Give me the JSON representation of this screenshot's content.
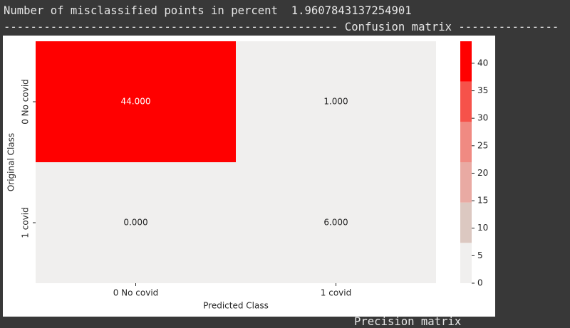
{
  "header": {
    "misclassified_label": "Number of misclassified points in percent",
    "misclassified_value": 1.9607843137254901,
    "section_line": "-------------------------------------------------- Confusion matrix ---------------"
  },
  "chart_data": {
    "type": "heatmap",
    "x_categories": [
      "0 No covid",
      "1 covid"
    ],
    "y_categories": [
      "0 No covid",
      "1 covid"
    ],
    "values": [
      [
        44,
        1
      ],
      [
        0,
        6
      ]
    ],
    "value_labels": [
      [
        "44.000",
        "1.000"
      ],
      [
        "0.000",
        "6.000"
      ]
    ],
    "xlabel": "Predicted Class",
    "ylabel": "Original Class",
    "colorbar": {
      "lim": [
        0,
        44
      ],
      "ticks": [
        0,
        5,
        10,
        15,
        20,
        25,
        30,
        35,
        40
      ],
      "colors": [
        "#f0efee",
        "#dcc8c1",
        "#e9aaa3",
        "#f08a82",
        "#f6524a",
        "#ff0000"
      ]
    }
  },
  "footer": "Precision matrix"
}
